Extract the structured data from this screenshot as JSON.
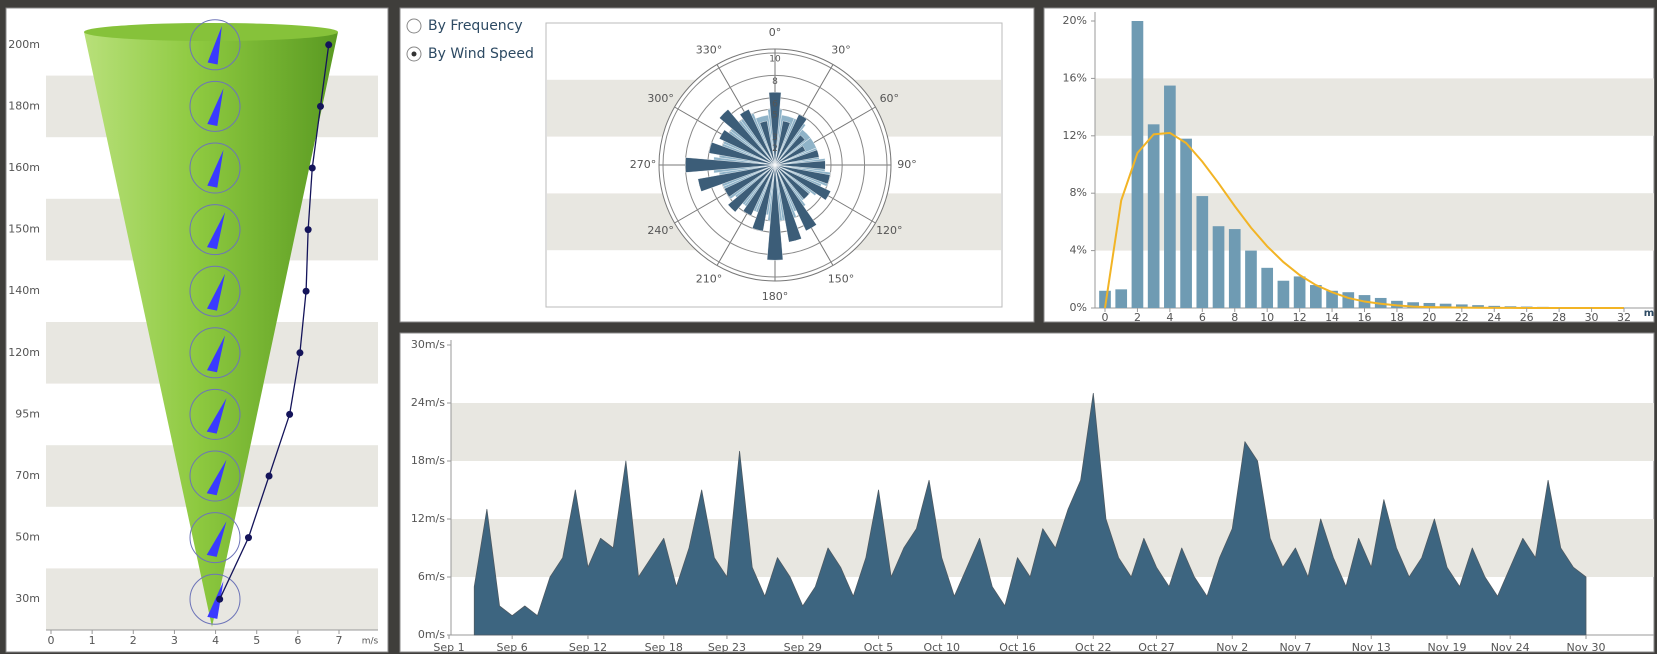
{
  "controls": {
    "options": [
      "By Frequency",
      "By Wind Speed"
    ],
    "selected": 1
  },
  "chart_data": [
    {
      "type": "line",
      "categories": [
        "30m",
        "50m",
        "70m",
        "95m",
        "120m",
        "140m",
        "150m",
        "160m",
        "180m",
        "200m"
      ],
      "values": [
        4.1,
        4.8,
        5.3,
        5.8,
        6.05,
        6.2,
        6.25,
        6.35,
        6.55,
        6.75
      ],
      "directions": [
        25,
        35,
        35,
        35,
        30,
        30,
        30,
        25,
        25,
        20
      ],
      "color": "#14145a",
      "arrow_color": "#3a3aff",
      "xlim": [
        0,
        7
      ],
      "xticks": [
        0,
        1,
        2,
        3,
        4,
        5,
        6,
        7
      ],
      "xlabel": "m/s",
      "grid": true
    },
    {
      "type": "windrose",
      "x": [
        0,
        15,
        30,
        45,
        60,
        75,
        90,
        105,
        120,
        135,
        150,
        165,
        180,
        195,
        210,
        225,
        240,
        255,
        270,
        285,
        300,
        315,
        330,
        345
      ],
      "series": [
        {
          "color": "#8fb3c8",
          "values": [
            5,
            4.5,
            4.5,
            4,
            4,
            4,
            4.5,
            5,
            4.5,
            4,
            4.5,
            5,
            5,
            4.5,
            4.5,
            4.5,
            5,
            5,
            5.5,
            5,
            5,
            5,
            5,
            4.5
          ]
        },
        {
          "color": "#3c5d78",
          "values": [
            6.5,
            4,
            5,
            3.5,
            3,
            4,
            4.5,
            5,
            5.5,
            4,
            6.5,
            7,
            8.5,
            6,
            5,
            5.5,
            5,
            7,
            8,
            6,
            5.5,
            6.5,
            5.5,
            4
          ]
        }
      ],
      "rlim": [
        0,
        10
      ],
      "rticks": [
        2,
        3,
        5,
        6,
        8,
        10
      ],
      "angle_ticks": [
        {
          "value": 0,
          "label": "0°"
        },
        {
          "value": 30,
          "label": "30°"
        },
        {
          "value": 60,
          "label": "60°"
        },
        {
          "value": 90,
          "label": "90°"
        },
        {
          "value": 120,
          "label": "120°"
        },
        {
          "value": 150,
          "label": "150°"
        },
        {
          "value": 180,
          "label": "180°"
        },
        {
          "value": 210,
          "label": "210°"
        },
        {
          "value": 240,
          "label": "240°"
        },
        {
          "value": 270,
          "label": "270°"
        },
        {
          "value": 300,
          "label": "300°"
        },
        {
          "value": 330,
          "label": "330°"
        }
      ],
      "grid": true
    },
    {
      "type": "bar",
      "x": [
        0,
        1,
        2,
        3,
        4,
        5,
        6,
        7,
        8,
        9,
        10,
        11,
        12,
        13,
        14,
        15,
        16,
        17,
        18,
        19,
        20,
        21,
        22,
        23,
        24,
        25,
        26,
        27,
        28,
        29,
        30,
        31,
        32
      ],
      "series": [
        {
          "type": "bar",
          "color": "#6f9bb3",
          "values": [
            1.2,
            1.3,
            20,
            12.8,
            15.5,
            11.8,
            7.8,
            5.7,
            5.5,
            4,
            2.8,
            1.9,
            2.2,
            1.6,
            1.2,
            1.1,
            0.9,
            0.7,
            0.5,
            0.4,
            0.35,
            0.3,
            0.25,
            0.2,
            0.15,
            0.12,
            0.1,
            0.08,
            0.06,
            0.05,
            0.04,
            0.03,
            0.02
          ]
        },
        {
          "type": "line",
          "color": "#f2b425",
          "values": [
            0,
            7.5,
            10.8,
            12.1,
            12.2,
            11.5,
            10.2,
            8.7,
            7.1,
            5.6,
            4.3,
            3.2,
            2.3,
            1.6,
            1.1,
            0.7,
            0.45,
            0.3,
            0.18,
            0.1,
            0.06,
            0.04,
            0.03,
            0.02,
            0.01,
            0.01,
            0,
            0,
            0,
            0,
            0,
            0,
            0
          ]
        }
      ],
      "xlim": [
        0,
        32
      ],
      "xticks": [
        0,
        2,
        4,
        6,
        8,
        10,
        12,
        14,
        16,
        18,
        20,
        22,
        24,
        26,
        28,
        30,
        32
      ],
      "xlabel": "m",
      "ylim": [
        0,
        20
      ],
      "yticks": [
        {
          "value": 0,
          "label": "0%"
        },
        {
          "value": 4,
          "label": "4%"
        },
        {
          "value": 8,
          "label": "8%"
        },
        {
          "value": 12,
          "label": "12%"
        },
        {
          "value": 16,
          "label": "16%"
        },
        {
          "value": 20,
          "label": "20%"
        }
      ],
      "grid": true
    },
    {
      "type": "area",
      "x": [
        "Sep 1",
        "Sep 2",
        "Sep 3",
        "Sep 4",
        "Sep 5",
        "Sep 6",
        "Sep 7",
        "Sep 8",
        "Sep 9",
        "Sep 10",
        "Sep 11",
        "Sep 12",
        "Sep 13",
        "Sep 14",
        "Sep 15",
        "Sep 16",
        "Sep 17",
        "Sep 18",
        "Sep 19",
        "Sep 20",
        "Sep 21",
        "Sep 22",
        "Sep 23",
        "Sep 24",
        "Sep 25",
        "Sep 26",
        "Sep 27",
        "Sep 28",
        "Sep 29",
        "Sep 30",
        "Oct 1",
        "Oct 2",
        "Oct 3",
        "Oct 4",
        "Oct 5",
        "Oct 6",
        "Oct 7",
        "Oct 8",
        "Oct 9",
        "Oct 10",
        "Oct 11",
        "Oct 12",
        "Oct 13",
        "Oct 14",
        "Oct 15",
        "Oct 16",
        "Oct 17",
        "Oct 18",
        "Oct 19",
        "Oct 20",
        "Oct 21",
        "Oct 22",
        "Oct 23",
        "Oct 24",
        "Oct 25",
        "Oct 26",
        "Oct 27",
        "Oct 28",
        "Oct 29",
        "Oct 30",
        "Oct 31",
        "Nov 1",
        "Nov 2",
        "Nov 3",
        "Nov 4",
        "Nov 5",
        "Nov 6",
        "Nov 7",
        "Nov 8",
        "Nov 9",
        "Nov 10",
        "Nov 11",
        "Nov 12",
        "Nov 13",
        "Nov 14",
        "Nov 15",
        "Nov 16",
        "Nov 17",
        "Nov 18",
        "Nov 19",
        "Nov 20",
        "Nov 21",
        "Nov 22",
        "Nov 23",
        "Nov 24",
        "Nov 25",
        "Nov 26",
        "Nov 27",
        "Nov 28",
        "Nov 29",
        "Nov 30"
      ],
      "values": [
        null,
        null,
        5,
        13,
        3,
        2,
        3,
        2,
        6,
        8,
        15,
        7,
        10,
        9,
        18,
        6,
        8,
        10,
        5,
        9,
        15,
        8,
        6,
        19,
        7,
        4,
        8,
        6,
        3,
        5,
        9,
        7,
        4,
        8,
        15,
        6,
        9,
        11,
        16,
        8,
        4,
        7,
        10,
        5,
        3,
        8,
        6,
        11,
        9,
        13,
        16,
        25,
        12,
        8,
        6,
        10,
        7,
        5,
        9,
        6,
        4,
        8,
        11,
        20,
        18,
        10,
        7,
        9,
        6,
        12,
        8,
        5,
        10,
        7,
        14,
        9,
        6,
        8,
        12,
        7,
        5,
        9,
        6,
        4,
        7,
        10,
        8,
        16,
        9,
        7,
        6
      ],
      "color": "#3d6580",
      "xticks": [
        "Sep 1",
        "Sep 6",
        "Sep 12",
        "Sep 18",
        "Sep 23",
        "Sep 29",
        "Oct 5",
        "Oct 10",
        "Oct 16",
        "Oct 22",
        "Oct 27",
        "Nov 2",
        "Nov 7",
        "Nov 13",
        "Nov 19",
        "Nov 24",
        "Nov 30"
      ],
      "ylim": [
        0,
        30
      ],
      "yticks": [
        {
          "value": 0,
          "label": "0m/s"
        },
        {
          "value": 6,
          "label": "6m/s"
        },
        {
          "value": 12,
          "label": "12m/s"
        },
        {
          "value": 18,
          "label": "18m/s"
        },
        {
          "value": 24,
          "label": "24m/s"
        },
        {
          "value": 30,
          "label": "30m/s"
        }
      ],
      "grid": true
    }
  ]
}
